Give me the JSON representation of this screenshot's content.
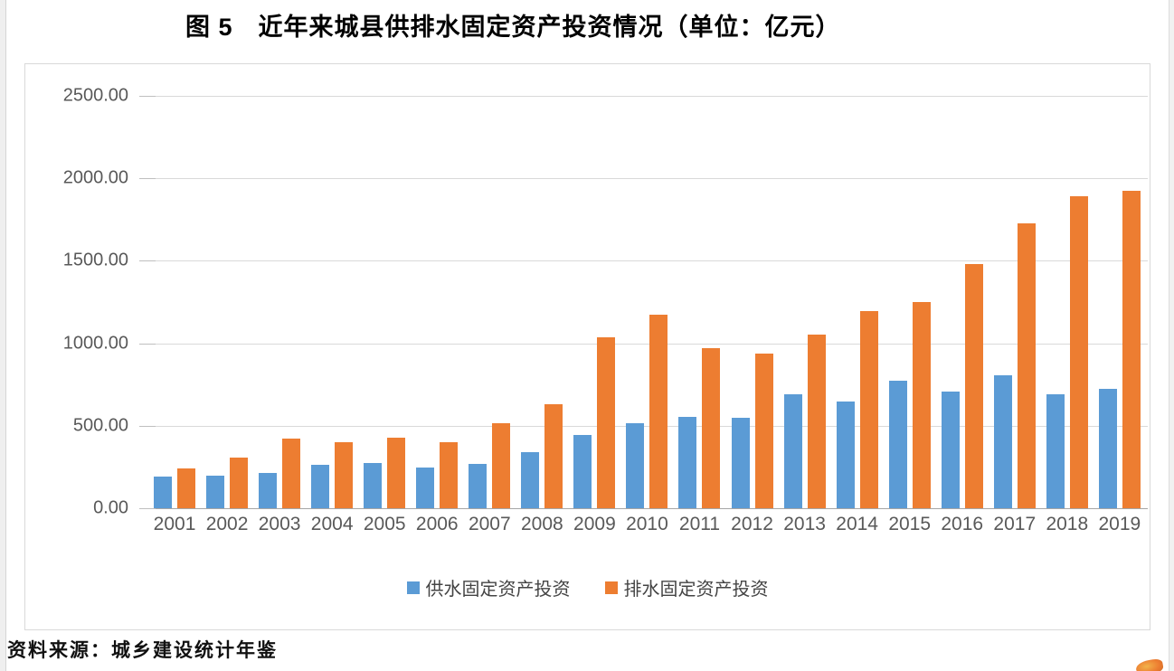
{
  "page": {
    "title": "图 5　近年来城县供排水固定资产投资情况（单位：亿元）",
    "source_note": "资料来源：城乡建设统计年鉴"
  },
  "chart_data": {
    "type": "bar",
    "title": "图 5　近年来城县供排水固定资产投资情况（单位：亿元）",
    "unit": "亿元",
    "categories": [
      "2001",
      "2002",
      "2003",
      "2004",
      "2005",
      "2006",
      "2007",
      "2008",
      "2009",
      "2010",
      "2011",
      "2012",
      "2013",
      "2014",
      "2015",
      "2016",
      "2017",
      "2018",
      "2019"
    ],
    "series": [
      {
        "name": "供水固定资产投资",
        "color": "#5B9BD5",
        "values": [
          190,
          195,
          215,
          265,
          275,
          245,
          270,
          340,
          445,
          515,
          555,
          550,
          690,
          645,
          775,
          705,
          805,
          690,
          725
        ]
      },
      {
        "name": "排水固定资产投资",
        "color": "#ED7D31",
        "values": [
          240,
          305,
          420,
          400,
          430,
          400,
          515,
          630,
          1035,
          1175,
          970,
          935,
          1055,
          1195,
          1250,
          1480,
          1725,
          1890,
          1925
        ]
      }
    ],
    "ylim": [
      0,
      2500
    ],
    "y_ticks": [
      {
        "label": "0.00",
        "value": 0
      },
      {
        "label": "500.00",
        "value": 500
      },
      {
        "label": "1000.00",
        "value": 1000
      },
      {
        "label": "1500.00",
        "value": 1500
      },
      {
        "label": "2000.00",
        "value": 2000
      },
      {
        "label": "2500.00",
        "value": 2500
      }
    ],
    "grid": true,
    "legend_position": "bottom"
  },
  "colors": {
    "supply_blue": "#5B9BD5",
    "drainage_orange": "#ED7D31",
    "gridline": "#D9D9D9",
    "axis_text": "#595959",
    "frame_border": "#D9D9D9"
  }
}
